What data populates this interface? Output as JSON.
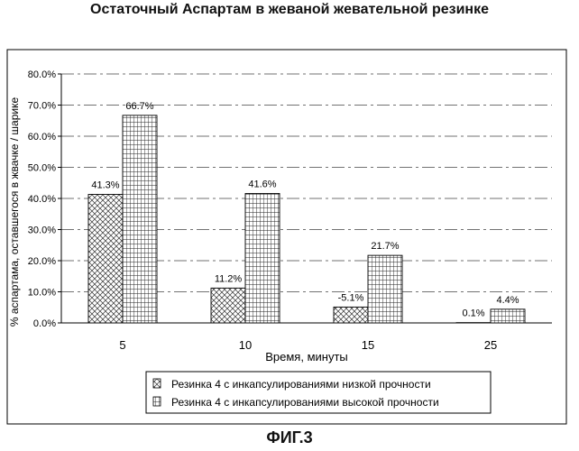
{
  "chart_data": {
    "type": "bar",
    "title": "Остаточный Аспартам в жеваной жевательной резинке",
    "xlabel": "Время, минуты",
    "ylabel": "% аспартама, оставшегося в жвачке / шарике",
    "categories": [
      "5",
      "10",
      "15",
      "25"
    ],
    "ylim": [
      0,
      80
    ],
    "yticks": [
      "0.0%",
      "10.0%",
      "20.0%",
      "30.0%",
      "40.0%",
      "50.0%",
      "60.0%",
      "70.0%",
      "80.0%"
    ],
    "grid": true,
    "legend_position": "bottom",
    "series": [
      {
        "name": "Резинка 4 с инкапсулированиями низкой прочности",
        "values": [
          41.3,
          11.2,
          5.1,
          0.1
        ],
        "labels": [
          "41.3%",
          "11.2%",
          "-5.1%",
          "0.1%"
        ]
      },
      {
        "name": "Резинка 4 с инкапсулированиями высокой прочности",
        "values": [
          66.7,
          41.6,
          21.7,
          4.4
        ],
        "labels": [
          "66.7%",
          "41.6%",
          "21.7%",
          "4.4%"
        ]
      }
    ]
  },
  "figure_label": "ФИГ.3"
}
